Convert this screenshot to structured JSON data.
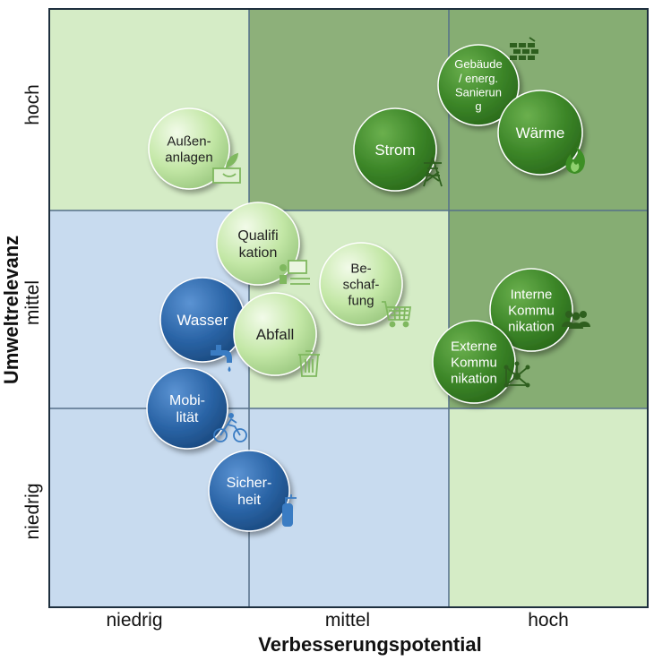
{
  "axes": {
    "x_title": "Verbesserungspotential",
    "y_title": "Umweltrelevanz",
    "x_ticks": [
      "niedrig",
      "mittel",
      "hoch"
    ],
    "y_ticks": [
      "niedrig",
      "mittel",
      "hoch"
    ]
  },
  "colors": {
    "cell_light_green": "#d5ecc6",
    "cell_mid_green": "#8db07a",
    "cell_dark_green": "#86ad73",
    "cell_blue": "#c8dbef",
    "grid_line": "#55708a",
    "bubble_light": "#c3e7a6",
    "bubble_dark_green": "#3f8a2a",
    "bubble_blue": "#2a64a6"
  },
  "cells": [
    {
      "col": 0,
      "row": 0,
      "fill": "light_green"
    },
    {
      "col": 1,
      "row": 0,
      "fill": "mid_green"
    },
    {
      "col": 2,
      "row": 0,
      "fill": "dark_green"
    },
    {
      "col": 0,
      "row": 1,
      "fill": "blue"
    },
    {
      "col": 1,
      "row": 1,
      "fill": "light_green"
    },
    {
      "col": 2,
      "row": 1,
      "fill": "dark_green"
    },
    {
      "col": 0,
      "row": 2,
      "fill": "blue"
    },
    {
      "col": 1,
      "row": 2,
      "fill": "blue"
    },
    {
      "col": 2,
      "row": 2,
      "fill": "light_green"
    }
  ],
  "topics": [
    {
      "id": "aussenanlagen",
      "lines": [
        "Außen-",
        "anlagen"
      ],
      "style": "light",
      "icon": "plant-icon"
    },
    {
      "id": "strom",
      "lines": [
        "Strom"
      ],
      "style": "dark",
      "icon": "power-tower-icon"
    },
    {
      "id": "gebaeude",
      "lines": [
        "Gebäude",
        "/ energ.",
        "Sanierun",
        "g"
      ],
      "style": "dark",
      "icon": "brick-wall-icon"
    },
    {
      "id": "waerme",
      "lines": [
        "Wärme"
      ],
      "style": "dark",
      "icon": "flame-icon"
    },
    {
      "id": "qualifikation",
      "lines": [
        "Qualifi",
        "kation"
      ],
      "style": "light",
      "icon": "presentation-icon"
    },
    {
      "id": "beschaffung",
      "lines": [
        "Be-",
        "schaf-",
        "fung"
      ],
      "style": "light",
      "icon": "shopping-cart-icon"
    },
    {
      "id": "wasser",
      "lines": [
        "Wasser"
      ],
      "style": "blue",
      "icon": "water-tap-icon"
    },
    {
      "id": "abfall",
      "lines": [
        "Abfall"
      ],
      "style": "light",
      "icon": "trash-bin-icon"
    },
    {
      "id": "interne-kommunikation",
      "lines": [
        "Interne",
        "Kommu",
        "nikation"
      ],
      "style": "dark",
      "icon": "people-icon"
    },
    {
      "id": "externe-kommunikation",
      "lines": [
        "Externe",
        "Kommu",
        "nikation"
      ],
      "style": "dark",
      "icon": "network-icon"
    },
    {
      "id": "mobilitaet",
      "lines": [
        "Mobi-",
        "lität"
      ],
      "style": "blue",
      "icon": "cyclist-icon"
    },
    {
      "id": "sicherheit",
      "lines": [
        "Sicher-",
        "heit"
      ],
      "style": "blue",
      "icon": "fire-extinguisher-icon"
    }
  ]
}
